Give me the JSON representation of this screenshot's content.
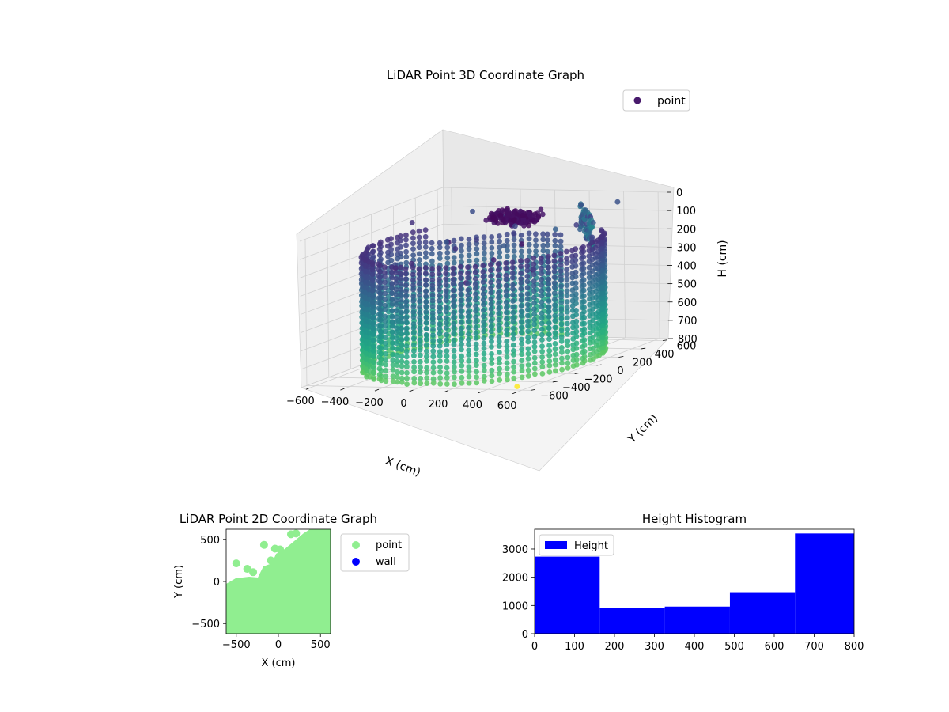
{
  "colors": {
    "viridis_dark": "#440154",
    "viridis_mid": "#2a788e",
    "viridis_teal": "#22a884",
    "viridis_yellow": "#fde725",
    "point_2d": "#90ee90",
    "wall_2d": "#0000ff",
    "histogram": "#0000ff"
  },
  "chart_data": [
    {
      "id": "lidar-3d",
      "type": "scatter",
      "projection": "3d",
      "title": "LiDAR Point 3D Coordinate Graph",
      "xlabel": "X (cm)",
      "ylabel": "Y (cm)",
      "zlabel": "H (cm)",
      "xlim": [
        -650,
        650
      ],
      "ylim": [
        -650,
        650
      ],
      "zlim": [
        0,
        800
      ],
      "x_ticks": [
        "−600",
        "−400",
        "−200",
        "0",
        "200",
        "400",
        "600"
      ],
      "y_ticks": [
        "−600",
        "−400",
        "−200",
        "0",
        "200",
        "400",
        "600"
      ],
      "z_ticks": [
        "0",
        "100",
        "200",
        "300",
        "400",
        "500",
        "600",
        "700",
        "800"
      ],
      "legend": [
        "point"
      ],
      "legend_position": "top-right",
      "colormap": "viridis",
      "grid": true,
      "series": [
        {
          "name": "point",
          "description_points": "dense cylindrical wall ring of radius ~600 cm spanning height 0-800 cm plus a cluster near the back and sparse outliers"
        }
      ]
    },
    {
      "id": "lidar-2d",
      "type": "scatter",
      "title": "LiDAR Point 2D Coordinate Graph",
      "xlabel": "X (cm)",
      "ylabel": "Y (cm)",
      "xlim": [
        -620,
        620
      ],
      "ylim": [
        -620,
        620
      ],
      "x_ticks": [
        "−500",
        "0",
        "500"
      ],
      "y_ticks": [
        "−500",
        "0",
        "500"
      ],
      "legend": [
        "point",
        "wall"
      ],
      "legend_position": "outside-right",
      "series": [
        {
          "name": "point"
        },
        {
          "name": "wall"
        }
      ],
      "outlier_points": [
        {
          "x": -500,
          "y": 215
        },
        {
          "x": -370,
          "y": 150
        },
        {
          "x": -300,
          "y": 110
        },
        {
          "x": -170,
          "y": 435
        },
        {
          "x": -40,
          "y": 390
        },
        {
          "x": 20,
          "y": 380
        },
        {
          "x": 150,
          "y": 560
        },
        {
          "x": 210,
          "y": 570
        },
        {
          "x": -90,
          "y": 250
        }
      ]
    },
    {
      "id": "height-histogram",
      "type": "bar",
      "title": "Height Histogram",
      "xlabel": "",
      "ylabel": "",
      "legend": [
        "Height"
      ],
      "legend_position": "top-left",
      "xlim": [
        0,
        800
      ],
      "ylim": [
        0,
        3700
      ],
      "x_ticks": [
        "0",
        "100",
        "200",
        "300",
        "400",
        "500",
        "600",
        "700",
        "800"
      ],
      "y_ticks": [
        "0",
        "1000",
        "2000",
        "3000"
      ],
      "bins": [
        {
          "from": 0,
          "to": 163,
          "count": 2730
        },
        {
          "from": 163,
          "to": 326,
          "count": 920
        },
        {
          "from": 326,
          "to": 489,
          "count": 960
        },
        {
          "from": 489,
          "to": 652,
          "count": 1470
        },
        {
          "from": 652,
          "to": 815,
          "count": 3550
        }
      ]
    }
  ]
}
